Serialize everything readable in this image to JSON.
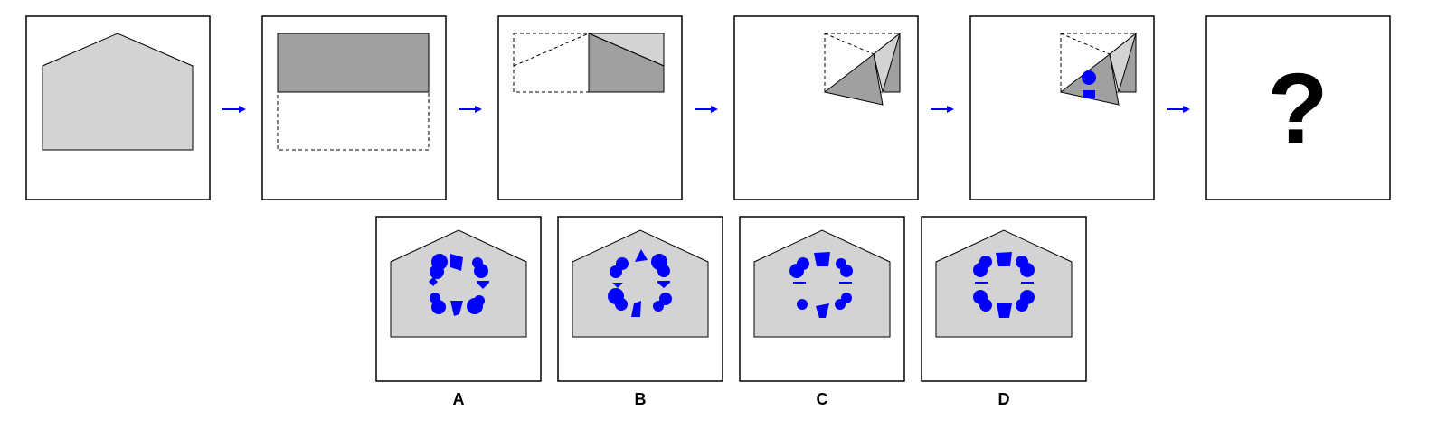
{
  "puzzle": {
    "question_mark": "?",
    "options": [
      {
        "label": "A"
      },
      {
        "label": "B"
      },
      {
        "label": "C"
      },
      {
        "label": "D"
      }
    ]
  },
  "colors": {
    "paper": "#d3d3d3",
    "folded_paper": "#a0a0a0",
    "hole": "#0000ff",
    "arrow": "#0000ff",
    "outline": "#000000"
  }
}
